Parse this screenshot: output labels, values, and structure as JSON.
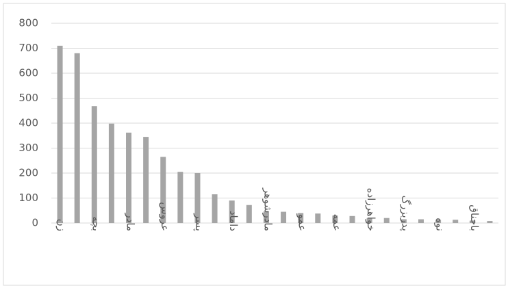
{
  "chart_data": {
    "type": "bar",
    "categories": [
      "زن",
      null,
      "بچه",
      null,
      "مادر",
      null,
      "عروس",
      null,
      "پسر",
      null,
      "داماد",
      null,
      "مادرشوهر",
      null,
      "عمو",
      null,
      "عمه",
      null,
      "خواهرزاده",
      null,
      "پدربزرگ",
      null,
      "نوه",
      null,
      "باجناق",
      null
    ],
    "values": [
      710,
      680,
      468,
      398,
      362,
      345,
      265,
      205,
      200,
      115,
      90,
      72,
      47,
      45,
      40,
      38,
      30,
      28,
      20,
      20,
      15,
      15,
      13,
      13,
      10,
      8
    ],
    "color": "#a5a5a5",
    "ylim": [
      0,
      800
    ],
    "yticks": [
      0,
      100,
      200,
      300,
      400,
      500,
      600,
      700,
      800
    ],
    "grid": true
  }
}
